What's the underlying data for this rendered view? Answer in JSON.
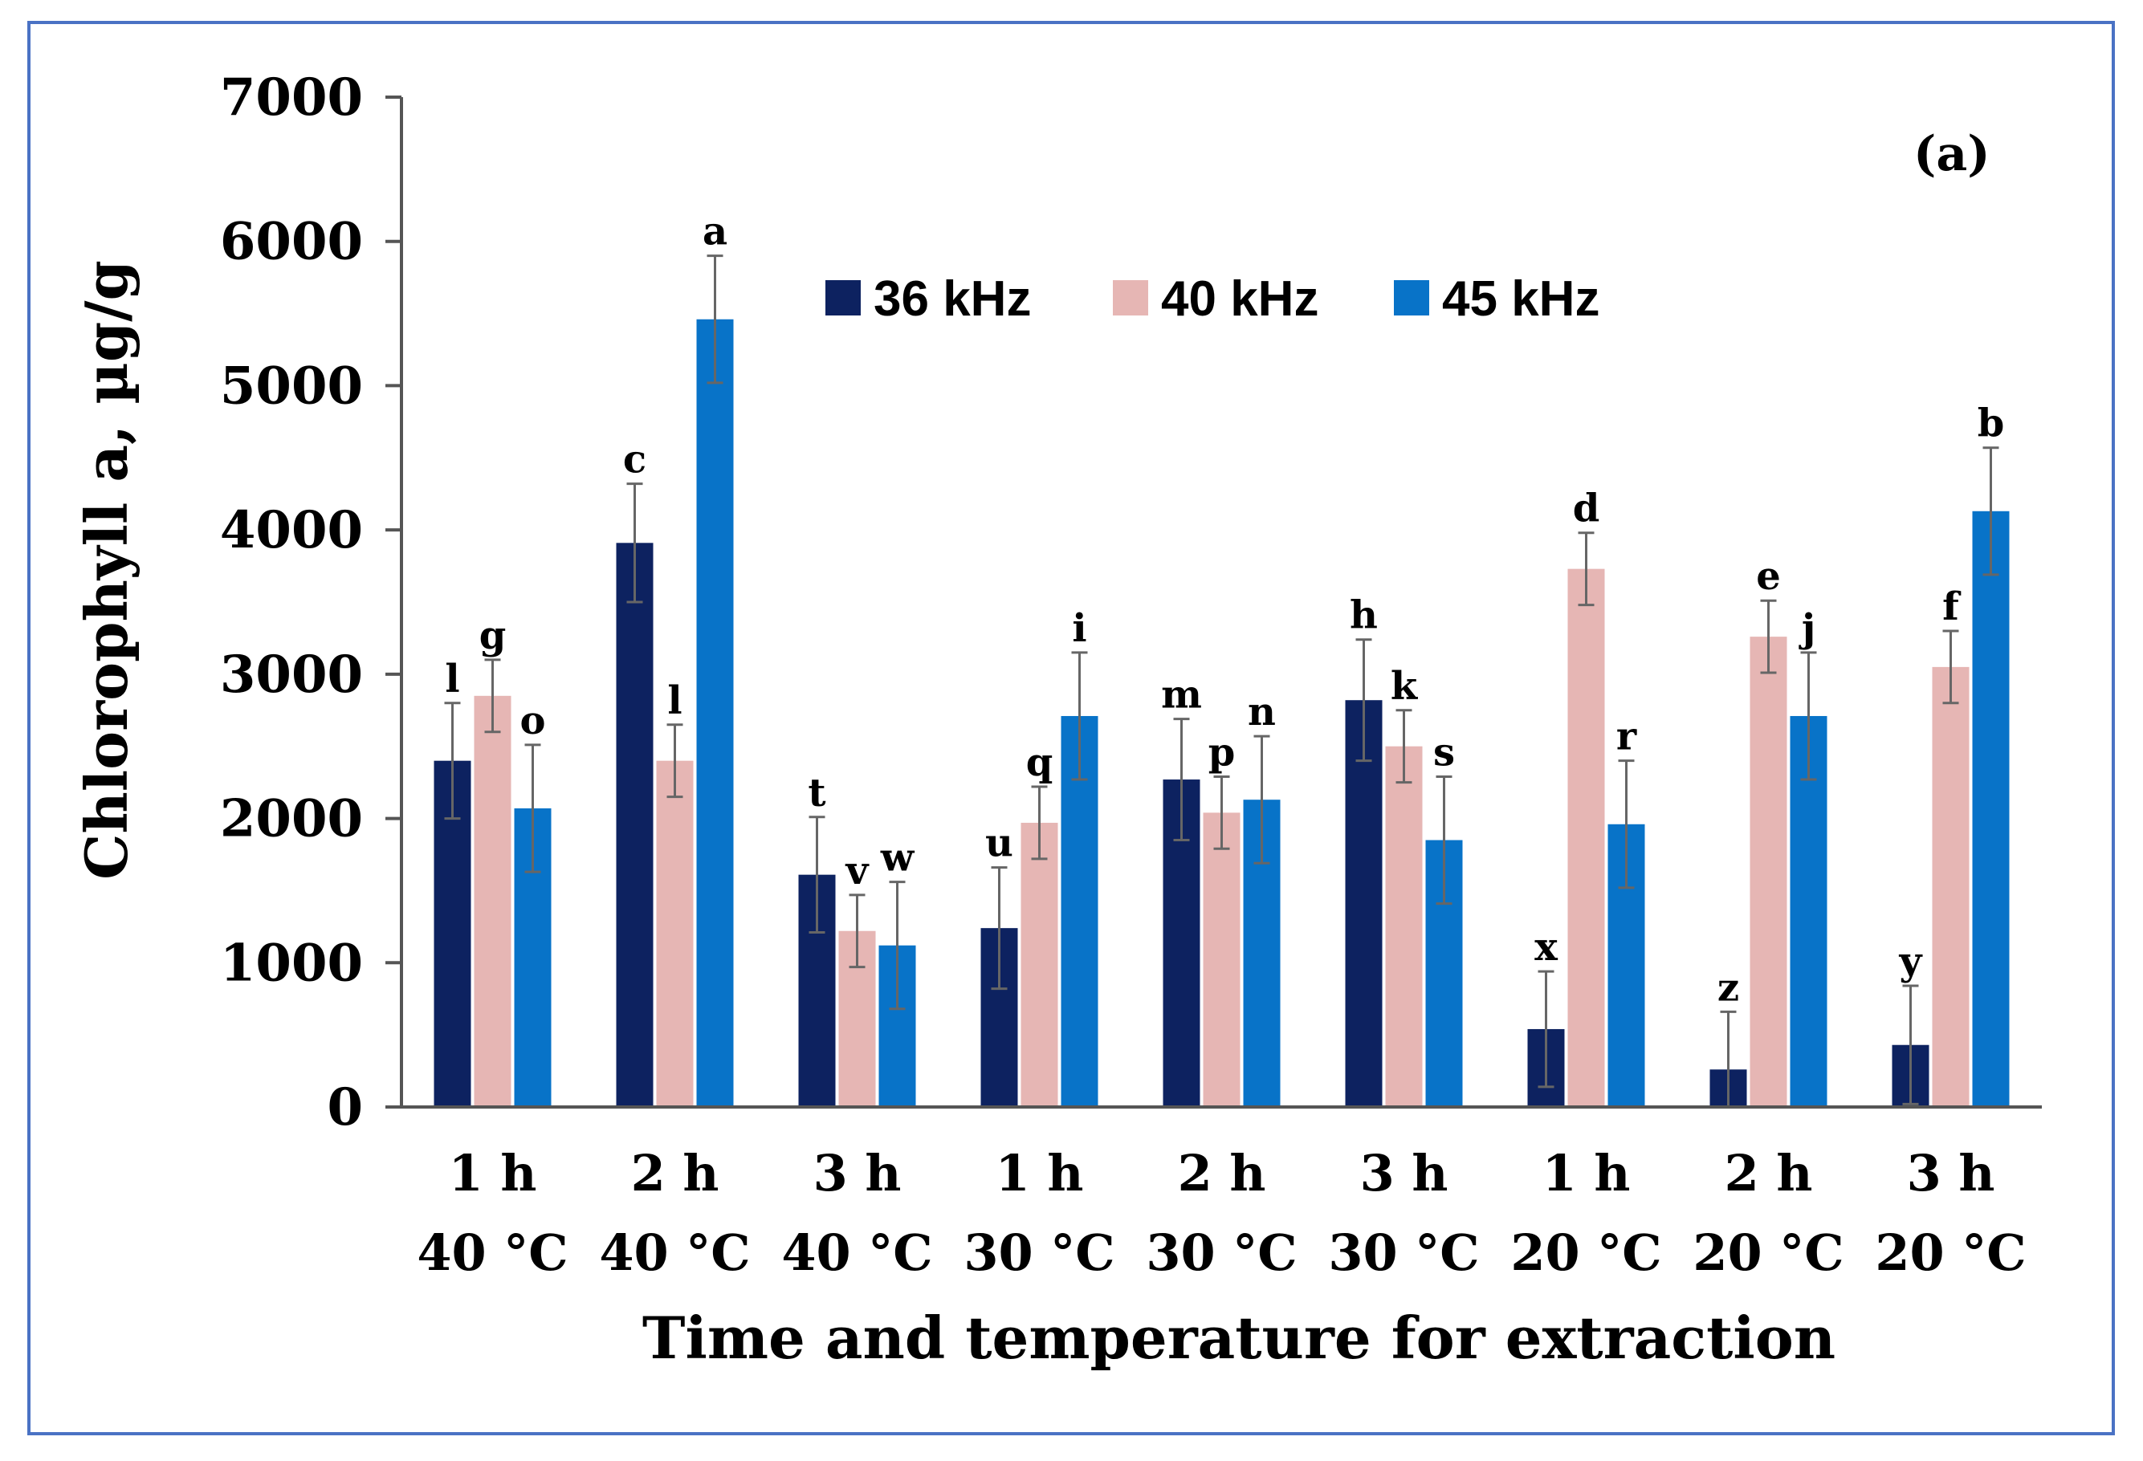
{
  "chart_data": {
    "type": "bar",
    "panel_label": "(a)",
    "ylabel": "Chlorophyll a, µg/g",
    "xlabel": "Time and temperature for extraction",
    "ylim": [
      0,
      7000
    ],
    "yticks": [
      0,
      1000,
      2000,
      3000,
      4000,
      5000,
      6000,
      7000
    ],
    "legend_position": "top-center",
    "categories": [
      {
        "line1": "1 h",
        "line2": "40 °C"
      },
      {
        "line1": "2 h",
        "line2": "40 °C"
      },
      {
        "line1": "3 h",
        "line2": "40 °C"
      },
      {
        "line1": "1 h",
        "line2": "30 °C"
      },
      {
        "line1": "2 h",
        "line2": "30 °C"
      },
      {
        "line1": "3 h",
        "line2": "30 °C"
      },
      {
        "line1": "1 h",
        "line2": "20 °C"
      },
      {
        "line1": "2 h",
        "line2": "20 °C"
      },
      {
        "line1": "3 h",
        "line2": "20 °C"
      }
    ],
    "series": [
      {
        "name": "36 kHz",
        "color": "#0d2260",
        "values": [
          2400,
          3910,
          1610,
          1240,
          2270,
          2820,
          540,
          260,
          430
        ],
        "errors": [
          400,
          410,
          400,
          420,
          420,
          420,
          400,
          400,
          410
        ],
        "letters": [
          "l",
          "c",
          "t",
          "u",
          "m",
          "h",
          "x",
          "z",
          "y"
        ]
      },
      {
        "name": "40 kHz",
        "color": "#e6b6b4",
        "values": [
          2850,
          2400,
          1220,
          1970,
          2040,
          2500,
          3730,
          3260,
          3050
        ],
        "errors": [
          250,
          250,
          250,
          250,
          250,
          250,
          250,
          250,
          250
        ],
        "letters": [
          "g",
          "l",
          "v",
          "q",
          "p",
          "k",
          "d",
          "e",
          "f"
        ]
      },
      {
        "name": "45 kHz",
        "color": "#0873c8",
        "values": [
          2070,
          5460,
          1120,
          2710,
          2130,
          1850,
          1960,
          2710,
          4130
        ],
        "errors": [
          440,
          440,
          440,
          440,
          440,
          440,
          440,
          440,
          440
        ],
        "letters": [
          "o",
          "a",
          "w",
          "i",
          "n",
          "s",
          "r",
          "j",
          "b"
        ]
      }
    ]
  }
}
